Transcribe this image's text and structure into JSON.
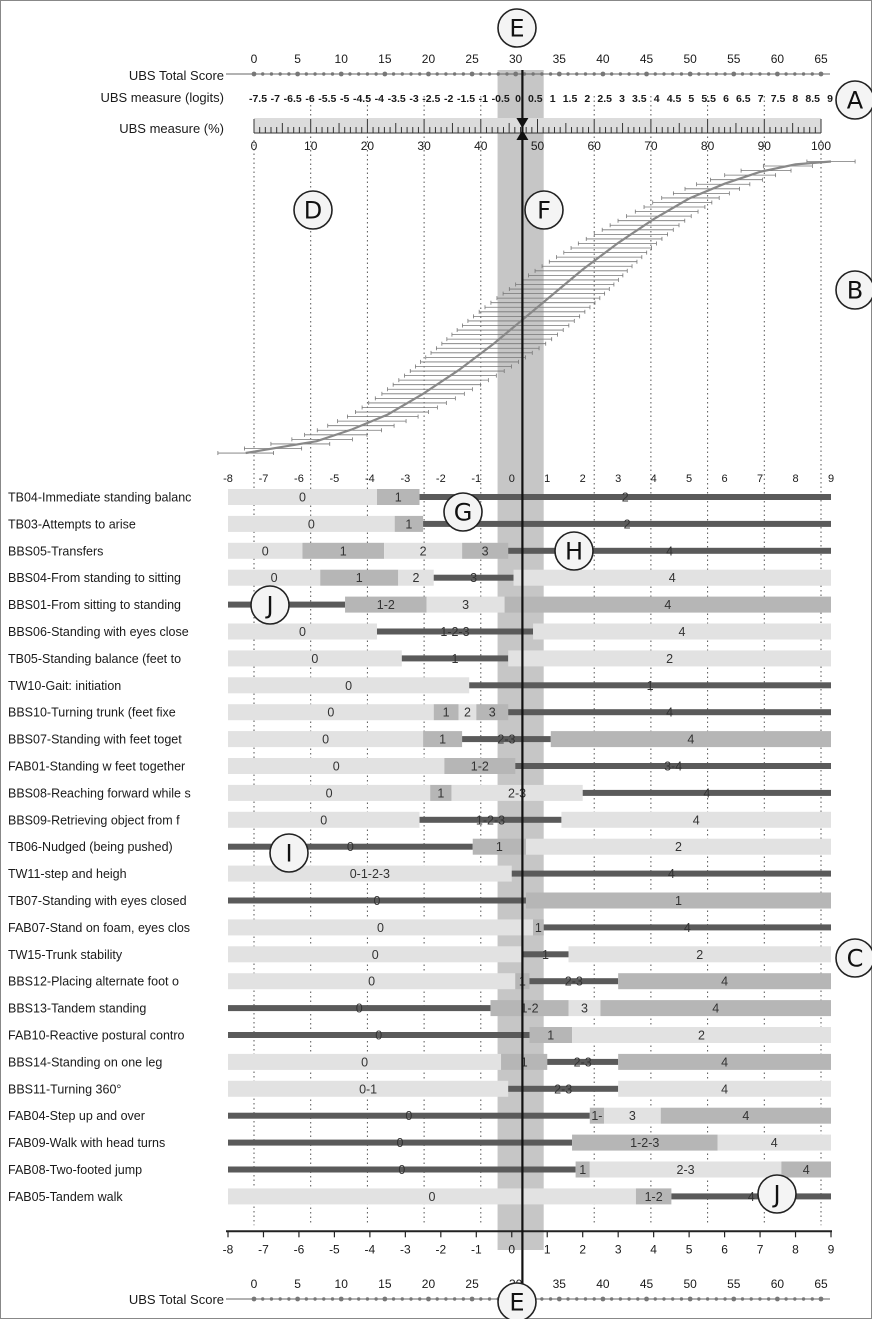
{
  "chart_data": {
    "type": "bar",
    "axis_labels": {
      "total_score": "UBS Total Score",
      "logits": "UBS measure (logits)",
      "percent": "UBS measure (%)"
    },
    "total_score_ticks": [
      0,
      5,
      10,
      15,
      20,
      25,
      30,
      35,
      40,
      45,
      50,
      55,
      60,
      65
    ],
    "logit_ticks": [
      "-7.5",
      "-7",
      "-6.5",
      "-6",
      "-5.5",
      "-5",
      "-4.5",
      "-4",
      "-3.5",
      "-3",
      "-2.5",
      "-2",
      "-1.5",
      "-1",
      "-0.5",
      "0",
      "0.5",
      "1",
      "1.5",
      "2",
      "2.5",
      "3",
      "3.5",
      "4",
      "4.5",
      "5",
      "5.5",
      "6",
      "6.5",
      "7",
      "7.5",
      "8",
      "8.5",
      "9"
    ],
    "percent_ticks": [
      0,
      10,
      20,
      30,
      40,
      50,
      60,
      70,
      80,
      90,
      100
    ],
    "item_axis_ticks": [
      -8,
      -7,
      -6,
      -5,
      -4,
      -3,
      -2,
      -1,
      0,
      1,
      2,
      3,
      4,
      5,
      6,
      7,
      8,
      9
    ],
    "xlim": [
      -8,
      9
    ],
    "reference_measure": 0.3,
    "reference_band": [
      -0.4,
      0.9
    ],
    "callouts": [
      "A",
      "B",
      "C",
      "D",
      "E",
      "F",
      "G",
      "H",
      "I",
      "J"
    ],
    "curve": {
      "description_points": "score to measure ogive",
      "points": [
        [
          -7.5,
          1
        ],
        [
          -6.5,
          3
        ],
        [
          -5.5,
          5
        ],
        [
          -4.5,
          9
        ],
        [
          -3.5,
          14
        ],
        [
          -2.5,
          21
        ],
        [
          -1.5,
          29
        ],
        [
          -0.5,
          38
        ],
        [
          0.3,
          46
        ],
        [
          1.0,
          53
        ],
        [
          2.0,
          63
        ],
        [
          3.0,
          72
        ],
        [
          4.0,
          80
        ],
        [
          5.0,
          87
        ],
        [
          6.0,
          92
        ],
        [
          7.0,
          96
        ],
        [
          8.0,
          98.5
        ],
        [
          9.0,
          99.5
        ]
      ]
    },
    "items": [
      {
        "label": "TB04-Immediate standing balanc",
        "segments": [
          {
            "from": -8,
            "to": -3.8,
            "cat": "0",
            "shade": "light"
          },
          {
            "from": -3.8,
            "to": -2.6,
            "cat": "1",
            "shade": "mid"
          },
          {
            "from": -2.6,
            "to": 9,
            "cat": "2",
            "shade": "dark"
          }
        ]
      },
      {
        "label": "TB03-Attempts to arise",
        "segments": [
          {
            "from": -8,
            "to": -3.3,
            "cat": "0",
            "shade": "light"
          },
          {
            "from": -3.3,
            "to": -2.5,
            "cat": "1",
            "shade": "mid"
          },
          {
            "from": -2.5,
            "to": 9,
            "cat": "2",
            "shade": "dark"
          }
        ]
      },
      {
        "label": "BBS05-Transfers",
        "segments": [
          {
            "from": -8,
            "to": -5.9,
            "cat": "0",
            "shade": "light"
          },
          {
            "from": -5.9,
            "to": -3.6,
            "cat": "1",
            "shade": "mid"
          },
          {
            "from": -3.6,
            "to": -1.4,
            "cat": "2",
            "shade": "light"
          },
          {
            "from": -1.4,
            "to": -0.1,
            "cat": "3",
            "shade": "mid"
          },
          {
            "from": -0.1,
            "to": 9,
            "cat": "4",
            "shade": "dark"
          }
        ]
      },
      {
        "label": "BBS04-From standing to sitting",
        "segments": [
          {
            "from": -8,
            "to": -5.4,
            "cat": "0",
            "shade": "light"
          },
          {
            "from": -5.4,
            "to": -3.2,
            "cat": "1",
            "shade": "mid"
          },
          {
            "from": -3.2,
            "to": -2.2,
            "cat": "2",
            "shade": "light"
          },
          {
            "from": -2.2,
            "to": 0.05,
            "cat": "3",
            "shade": "dark"
          },
          {
            "from": 0.05,
            "to": 9,
            "cat": "4",
            "shade": "light"
          }
        ]
      },
      {
        "label": "BBS01-From sitting to standing",
        "segments": [
          {
            "from": -8,
            "to": -4.7,
            "cat": "0",
            "shade": "dark"
          },
          {
            "from": -4.7,
            "to": -2.4,
            "cat": "1-2",
            "shade": "mid"
          },
          {
            "from": -2.4,
            "to": -0.2,
            "cat": "3",
            "shade": "light"
          },
          {
            "from": -0.2,
            "to": 9,
            "cat": "4",
            "shade": "mid"
          }
        ]
      },
      {
        "label": "BBS06-Standing with eyes close",
        "segments": [
          {
            "from": -8,
            "to": -3.8,
            "cat": "0",
            "shade": "light"
          },
          {
            "from": -3.8,
            "to": 0.6,
            "cat": "1-2-3",
            "shade": "dark"
          },
          {
            "from": 0.6,
            "to": 9,
            "cat": "4",
            "shade": "light"
          }
        ]
      },
      {
        "label": "TB05-Standing balance (feet to",
        "segments": [
          {
            "from": -8,
            "to": -3.1,
            "cat": "0",
            "shade": "light"
          },
          {
            "from": -3.1,
            "to": -0.1,
            "cat": "1",
            "shade": "dark"
          },
          {
            "from": -0.1,
            "to": 9,
            "cat": "2",
            "shade": "light"
          }
        ]
      },
      {
        "label": "TW10-Gait: initiation",
        "segments": [
          {
            "from": -8,
            "to": -1.2,
            "cat": "0",
            "shade": "light"
          },
          {
            "from": -1.2,
            "to": 9,
            "cat": "1",
            "shade": "dark"
          }
        ]
      },
      {
        "label": "BBS10-Turning trunk (feet fixe",
        "segments": [
          {
            "from": -8,
            "to": -2.2,
            "cat": "0",
            "shade": "light"
          },
          {
            "from": -2.2,
            "to": -1.5,
            "cat": "1",
            "shade": "mid"
          },
          {
            "from": -1.5,
            "to": -1.0,
            "cat": "2",
            "shade": "light"
          },
          {
            "from": -1.0,
            "to": -0.1,
            "cat": "3",
            "shade": "mid"
          },
          {
            "from": -0.1,
            "to": 9,
            "cat": "4",
            "shade": "dark"
          }
        ]
      },
      {
        "label": "BBS07-Standing with feet toget",
        "segments": [
          {
            "from": -8,
            "to": -2.5,
            "cat": "0",
            "shade": "light"
          },
          {
            "from": -2.5,
            "to": -1.4,
            "cat": "1",
            "shade": "mid"
          },
          {
            "from": -1.4,
            "to": 1.1,
            "cat": "2-3",
            "shade": "dark"
          },
          {
            "from": 1.1,
            "to": 9,
            "cat": "4",
            "shade": "mid"
          }
        ]
      },
      {
        "label": "FAB01-Standing w feet together",
        "segments": [
          {
            "from": -8,
            "to": -1.9,
            "cat": "0",
            "shade": "light"
          },
          {
            "from": -1.9,
            "to": 0.1,
            "cat": "1-2",
            "shade": "mid"
          },
          {
            "from": 0.1,
            "to": 9,
            "cat": "3-4",
            "shade": "dark"
          }
        ]
      },
      {
        "label": "BBS08-Reaching forward while s",
        "segments": [
          {
            "from": -8,
            "to": -2.3,
            "cat": "0",
            "shade": "light"
          },
          {
            "from": -2.3,
            "to": -1.7,
            "cat": "1",
            "shade": "mid"
          },
          {
            "from": -1.7,
            "to": 2.0,
            "cat": "2-3",
            "shade": "light"
          },
          {
            "from": 2.0,
            "to": 9,
            "cat": "4",
            "shade": "dark"
          }
        ]
      },
      {
        "label": "BBS09-Retrieving object from f",
        "segments": [
          {
            "from": -8,
            "to": -2.6,
            "cat": "0",
            "shade": "light"
          },
          {
            "from": -2.6,
            "to": 1.4,
            "cat": "1-2-3",
            "shade": "dark"
          },
          {
            "from": 1.4,
            "to": 9,
            "cat": "4",
            "shade": "light"
          }
        ]
      },
      {
        "label": "TB06-Nudged (being pushed)",
        "segments": [
          {
            "from": -8,
            "to": -1.1,
            "cat": "0",
            "shade": "dark"
          },
          {
            "from": -1.1,
            "to": 0.4,
            "cat": "1",
            "shade": "mid"
          },
          {
            "from": 0.4,
            "to": 9,
            "cat": "2",
            "shade": "light"
          }
        ]
      },
      {
        "label": "TW11-step and heigh",
        "segments": [
          {
            "from": -8,
            "to": 0.0,
            "cat": "0-1-2-3",
            "shade": "light"
          },
          {
            "from": 0.0,
            "to": 9,
            "cat": "4",
            "shade": "dark"
          }
        ]
      },
      {
        "label": "TB07-Standing with eyes closed",
        "segments": [
          {
            "from": -8,
            "to": 0.4,
            "cat": "0",
            "shade": "dark"
          },
          {
            "from": 0.4,
            "to": 9,
            "cat": "1",
            "shade": "mid"
          }
        ]
      },
      {
        "label": "FAB07-Stand on foam, eyes clos",
        "segments": [
          {
            "from": -8,
            "to": 0.6,
            "cat": "0",
            "shade": "light"
          },
          {
            "from": 0.6,
            "to": 0.9,
            "cat": "1",
            "shade": "mid"
          },
          {
            "from": 0.9,
            "to": 9,
            "cat": "4",
            "shade": "dark"
          }
        ]
      },
      {
        "label": "TW15-Trunk stability",
        "segments": [
          {
            "from": -8,
            "to": 0.3,
            "cat": "0",
            "shade": "light"
          },
          {
            "from": 0.3,
            "to": 1.6,
            "cat": "1",
            "shade": "dark"
          },
          {
            "from": 1.6,
            "to": 9,
            "cat": "2",
            "shade": "light"
          }
        ]
      },
      {
        "label": "BBS12-Placing alternate foot o",
        "segments": [
          {
            "from": -8,
            "to": 0.1,
            "cat": "0",
            "shade": "light"
          },
          {
            "from": 0.1,
            "to": 0.5,
            "cat": "1",
            "shade": "mid"
          },
          {
            "from": 0.5,
            "to": 3.0,
            "cat": "2-3",
            "shade": "dark"
          },
          {
            "from": 3.0,
            "to": 9,
            "cat": "4",
            "shade": "mid"
          }
        ]
      },
      {
        "label": "BBS13-Tandem standing",
        "segments": [
          {
            "from": -8,
            "to": -0.6,
            "cat": "0",
            "shade": "dark"
          },
          {
            "from": -0.6,
            "to": 1.6,
            "cat": "1-2",
            "shade": "mid"
          },
          {
            "from": 1.6,
            "to": 2.5,
            "cat": "3",
            "shade": "light"
          },
          {
            "from": 2.5,
            "to": 9,
            "cat": "4",
            "shade": "mid"
          }
        ]
      },
      {
        "label": "FAB10-Reactive postural contro",
        "segments": [
          {
            "from": -8,
            "to": 0.5,
            "cat": "0",
            "shade": "dark"
          },
          {
            "from": 0.5,
            "to": 1.7,
            "cat": "1",
            "shade": "mid"
          },
          {
            "from": 1.7,
            "to": 9,
            "cat": "2",
            "shade": "light"
          }
        ]
      },
      {
        "label": "BBS14-Standing on one leg",
        "segments": [
          {
            "from": -8,
            "to": -0.3,
            "cat": "0",
            "shade": "light"
          },
          {
            "from": -0.3,
            "to": 1.0,
            "cat": "1",
            "shade": "mid"
          },
          {
            "from": 1.0,
            "to": 3.0,
            "cat": "2-3",
            "shade": "dark"
          },
          {
            "from": 3.0,
            "to": 9,
            "cat": "4",
            "shade": "mid"
          }
        ]
      },
      {
        "label": "BBS11-Turning 360°",
        "segments": [
          {
            "from": -8,
            "to": -0.1,
            "cat": "0-1",
            "shade": "light"
          },
          {
            "from": -0.1,
            "to": 3.0,
            "cat": "2-3",
            "shade": "dark"
          },
          {
            "from": 3.0,
            "to": 9,
            "cat": "4",
            "shade": "light"
          }
        ]
      },
      {
        "label": "FAB04-Step up and over",
        "segments": [
          {
            "from": -8,
            "to": 2.2,
            "cat": "0",
            "shade": "dark"
          },
          {
            "from": 2.2,
            "to": 2.6,
            "cat": "1-",
            "shade": "mid"
          },
          {
            "from": 2.6,
            "to": 4.2,
            "cat": "3",
            "shade": "light"
          },
          {
            "from": 4.2,
            "to": 9,
            "cat": "4",
            "shade": "mid"
          }
        ]
      },
      {
        "label": "FAB09-Walk with head turns",
        "segments": [
          {
            "from": -8,
            "to": 1.7,
            "cat": "0",
            "shade": "dark"
          },
          {
            "from": 1.7,
            "to": 5.8,
            "cat": "1-2-3",
            "shade": "mid"
          },
          {
            "from": 5.8,
            "to": 9,
            "cat": "4",
            "shade": "light"
          }
        ]
      },
      {
        "label": "FAB08-Two-footed jump",
        "segments": [
          {
            "from": -8,
            "to": 1.8,
            "cat": "0",
            "shade": "dark"
          },
          {
            "from": 1.8,
            "to": 2.2,
            "cat": "1",
            "shade": "mid"
          },
          {
            "from": 2.2,
            "to": 7.6,
            "cat": "2-3",
            "shade": "light"
          },
          {
            "from": 7.6,
            "to": 9,
            "cat": "4",
            "shade": "mid"
          }
        ]
      },
      {
        "label": "FAB05-Tandem walk",
        "segments": [
          {
            "from": -8,
            "to": 3.5,
            "cat": "0",
            "shade": "light"
          },
          {
            "from": 3.5,
            "to": 4.5,
            "cat": "1-2",
            "shade": "mid"
          },
          {
            "from": 4.5,
            "to": 9,
            "cat": "4",
            "shade": "dark"
          }
        ]
      }
    ]
  }
}
